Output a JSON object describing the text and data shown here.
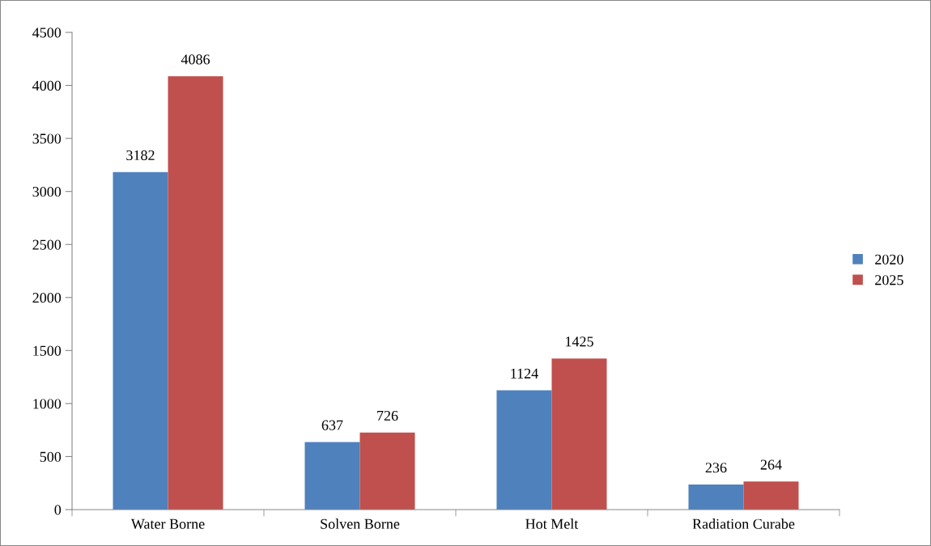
{
  "chart_data": {
    "type": "bar",
    "categories": [
      "Water Borne",
      "Solven Borne",
      "Hot Melt",
      "Radiation Curabe"
    ],
    "series": [
      {
        "name": "2020",
        "color": "#4f81bd",
        "values": [
          3182,
          637,
          1124,
          236
        ]
      },
      {
        "name": "2025",
        "color": "#c0504d",
        "values": [
          4086,
          726,
          1425,
          264
        ]
      }
    ],
    "ylim": [
      0,
      4500
    ],
    "yticks": [
      0,
      500,
      1000,
      1500,
      2000,
      2500,
      3000,
      3500,
      4000,
      4500
    ],
    "data_labels": true,
    "legend": "right",
    "grid": false
  }
}
